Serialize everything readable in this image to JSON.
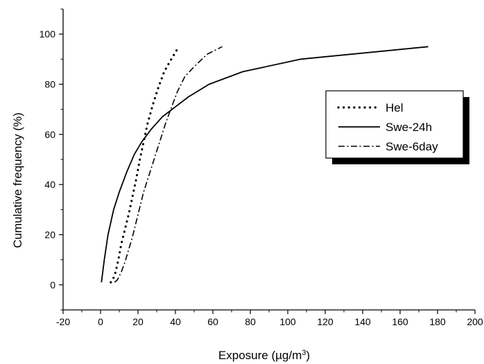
{
  "chart_data": {
    "type": "line",
    "title": "",
    "xlabel": "Exposure (µg/m",
    "xlabel_superscript": "3",
    "xlabel_suffix": ")",
    "ylabel": "Cumulative frequency (%)",
    "xlim": [
      -20,
      200
    ],
    "ylim": [
      -10,
      110
    ],
    "xticks": [
      "-20",
      "0",
      "20",
      "40",
      "60",
      "80",
      "100",
      "120",
      "140",
      "160",
      "180",
      "200"
    ],
    "yticks": [
      "0",
      "20",
      "40",
      "60",
      "80",
      "100"
    ],
    "xtick_values": [
      -20,
      0,
      20,
      40,
      60,
      80,
      100,
      120,
      140,
      160,
      180,
      200
    ],
    "ytick_values": [
      0,
      20,
      40,
      60,
      80,
      100
    ],
    "grid": false,
    "legend_position": "right",
    "series": [
      {
        "name": "Hel",
        "dash": "dot",
        "x": [
          5.5,
          6.5,
          8,
          9.5,
          11,
          13,
          15,
          17,
          19,
          21,
          23,
          25,
          28,
          31,
          34,
          37,
          41
        ],
        "y": [
          1,
          2,
          5,
          10,
          16,
          22,
          28,
          35,
          42,
          50,
          57,
          64,
          72,
          79,
          85,
          89,
          94
        ]
      },
      {
        "name": "Swe-24h",
        "dash": "solid",
        "x": [
          0.5,
          2,
          4,
          7,
          10,
          14,
          18,
          22,
          27,
          33,
          40,
          47,
          58,
          76,
          107,
          175
        ],
        "y": [
          1,
          10,
          20,
          30,
          37,
          45,
          52,
          57,
          62,
          67,
          71,
          75,
          80,
          85,
          90,
          95
        ]
      },
      {
        "name": "Swe-6day",
        "dash": "dashdot",
        "x": [
          7.5,
          9,
          11,
          13,
          15,
          17,
          19,
          21,
          23,
          26,
          29,
          32,
          35,
          38,
          41,
          45,
          50,
          57,
          65
        ],
        "y": [
          1,
          2,
          5,
          9,
          14,
          19,
          25,
          31,
          37,
          44,
          51,
          58,
          65,
          71,
          77,
          83,
          87,
          92,
          95
        ]
      }
    ]
  }
}
